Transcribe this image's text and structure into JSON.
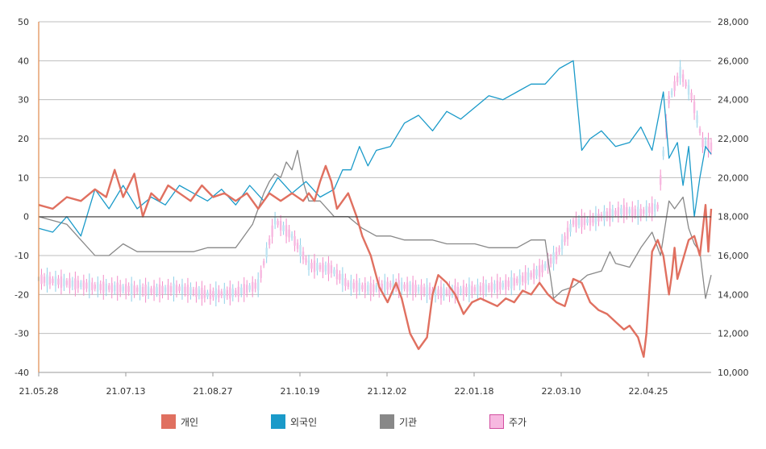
{
  "chart_data": {
    "type": "line",
    "title": "",
    "left_axis": {
      "ylim": [
        -40,
        50
      ],
      "ticks": [
        "50",
        "40",
        "30",
        "20",
        "10",
        "0",
        "-10",
        "-20",
        "-30",
        "-40"
      ]
    },
    "right_axis": {
      "ylim": [
        10000,
        28000
      ],
      "ticks": [
        "28,000",
        "26,000",
        "24,000",
        "22,000",
        "20,000",
        "18,000",
        "16,000",
        "14,000",
        "12,000",
        "10,000"
      ]
    },
    "x_ticks": [
      "21.05.28",
      "21.07.13",
      "21.08.27",
      "21.10.19",
      "21.12.02",
      "22.01.18",
      "22.03.10",
      "22.04.25"
    ],
    "n_points": 240,
    "series": [
      {
        "name": "개인",
        "color": "#e07060",
        "axis": "left",
        "points": [
          [
            0,
            3
          ],
          [
            5,
            2
          ],
          [
            10,
            5
          ],
          [
            15,
            4
          ],
          [
            20,
            7
          ],
          [
            24,
            5
          ],
          [
            27,
            12
          ],
          [
            30,
            5
          ],
          [
            34,
            11
          ],
          [
            37,
            0
          ],
          [
            40,
            6
          ],
          [
            43,
            4
          ],
          [
            46,
            8
          ],
          [
            50,
            6
          ],
          [
            54,
            4
          ],
          [
            58,
            8
          ],
          [
            62,
            5
          ],
          [
            66,
            6
          ],
          [
            70,
            4
          ],
          [
            74,
            6
          ],
          [
            78,
            2
          ],
          [
            82,
            6
          ],
          [
            86,
            4
          ],
          [
            90,
            6
          ],
          [
            94,
            4
          ],
          [
            96,
            6
          ],
          [
            98,
            4
          ],
          [
            100,
            9
          ],
          [
            102,
            13
          ],
          [
            104,
            9
          ],
          [
            106,
            2
          ],
          [
            110,
            6
          ],
          [
            113,
            0
          ],
          [
            115,
            -5
          ],
          [
            118,
            -10
          ],
          [
            121,
            -18
          ],
          [
            124,
            -22
          ],
          [
            127,
            -17
          ],
          [
            129,
            -21
          ],
          [
            132,
            -30
          ],
          [
            135,
            -34
          ],
          [
            138,
            -31
          ],
          [
            140,
            -20
          ],
          [
            142,
            -15
          ],
          [
            145,
            -17
          ],
          [
            148,
            -20
          ],
          [
            151,
            -25
          ],
          [
            154,
            -22
          ],
          [
            157,
            -21
          ],
          [
            160,
            -22
          ],
          [
            163,
            -23
          ],
          [
            166,
            -21
          ],
          [
            169,
            -22
          ],
          [
            172,
            -19
          ],
          [
            175,
            -20
          ],
          [
            178,
            -17
          ],
          [
            181,
            -20
          ],
          [
            184,
            -22
          ],
          [
            187,
            -23
          ],
          [
            190,
            -16
          ],
          [
            193,
            -17
          ],
          [
            196,
            -22
          ],
          [
            199,
            -24
          ],
          [
            202,
            -25
          ],
          [
            205,
            -27
          ],
          [
            208,
            -29
          ],
          [
            210,
            -28
          ],
          [
            213,
            -31
          ],
          [
            215,
            -36
          ],
          [
            216,
            -30
          ],
          [
            218,
            -9
          ],
          [
            220,
            -6
          ],
          [
            222,
            -10
          ],
          [
            224,
            -20
          ],
          [
            225,
            -15
          ],
          [
            226,
            -8
          ],
          [
            227,
            -16
          ],
          [
            229,
            -11
          ],
          [
            231,
            -6
          ],
          [
            233,
            -5
          ],
          [
            235,
            -10
          ],
          [
            237,
            3
          ],
          [
            238,
            -9
          ],
          [
            239,
            2
          ]
        ]
      },
      {
        "name": "외국인",
        "color": "#1a9ac9",
        "axis": "left",
        "points": [
          [
            0,
            -3
          ],
          [
            5,
            -4
          ],
          [
            10,
            0
          ],
          [
            15,
            -5
          ],
          [
            20,
            7
          ],
          [
            25,
            2
          ],
          [
            30,
            8
          ],
          [
            35,
            2
          ],
          [
            40,
            5
          ],
          [
            45,
            3
          ],
          [
            50,
            8
          ],
          [
            55,
            6
          ],
          [
            60,
            4
          ],
          [
            65,
            7
          ],
          [
            70,
            3
          ],
          [
            75,
            8
          ],
          [
            80,
            4
          ],
          [
            85,
            10
          ],
          [
            90,
            6
          ],
          [
            95,
            9
          ],
          [
            100,
            5
          ],
          [
            105,
            7
          ],
          [
            108,
            12
          ],
          [
            111,
            12
          ],
          [
            114,
            18
          ],
          [
            117,
            13
          ],
          [
            120,
            17
          ],
          [
            125,
            18
          ],
          [
            130,
            24
          ],
          [
            135,
            26
          ],
          [
            140,
            22
          ],
          [
            145,
            27
          ],
          [
            150,
            25
          ],
          [
            155,
            28
          ],
          [
            160,
            31
          ],
          [
            165,
            30
          ],
          [
            170,
            32
          ],
          [
            175,
            34
          ],
          [
            180,
            34
          ],
          [
            185,
            38
          ],
          [
            190,
            40
          ],
          [
            193,
            17
          ],
          [
            196,
            20
          ],
          [
            200,
            22
          ],
          [
            205,
            18
          ],
          [
            210,
            19
          ],
          [
            214,
            23
          ],
          [
            218,
            17
          ],
          [
            222,
            32
          ],
          [
            224,
            15
          ],
          [
            227,
            19
          ],
          [
            229,
            8
          ],
          [
            231,
            18
          ],
          [
            233,
            0
          ],
          [
            235,
            10
          ],
          [
            237,
            18
          ],
          [
            239,
            16
          ]
        ]
      },
      {
        "name": "기관",
        "color": "#888888",
        "axis": "left",
        "points": [
          [
            0,
            0
          ],
          [
            5,
            -1
          ],
          [
            10,
            -2
          ],
          [
            15,
            -6
          ],
          [
            20,
            -10
          ],
          [
            25,
            -10
          ],
          [
            30,
            -7
          ],
          [
            35,
            -9
          ],
          [
            40,
            -9
          ],
          [
            45,
            -9
          ],
          [
            50,
            -9
          ],
          [
            55,
            -9
          ],
          [
            60,
            -8
          ],
          [
            65,
            -8
          ],
          [
            70,
            -8
          ],
          [
            72,
            -6
          ],
          [
            76,
            -2
          ],
          [
            78,
            2
          ],
          [
            80,
            6
          ],
          [
            82,
            9
          ],
          [
            84,
            11
          ],
          [
            86,
            10
          ],
          [
            88,
            14
          ],
          [
            90,
            12
          ],
          [
            92,
            17
          ],
          [
            94,
            9
          ],
          [
            96,
            4
          ],
          [
            100,
            4
          ],
          [
            105,
            0
          ],
          [
            110,
            0
          ],
          [
            115,
            -3
          ],
          [
            120,
            -5
          ],
          [
            125,
            -5
          ],
          [
            130,
            -6
          ],
          [
            135,
            -6
          ],
          [
            140,
            -6
          ],
          [
            145,
            -7
          ],
          [
            150,
            -7
          ],
          [
            155,
            -7
          ],
          [
            160,
            -8
          ],
          [
            165,
            -8
          ],
          [
            170,
            -8
          ],
          [
            175,
            -6
          ],
          [
            180,
            -6
          ],
          [
            183,
            -21
          ],
          [
            186,
            -19
          ],
          [
            190,
            -18
          ],
          [
            195,
            -15
          ],
          [
            200,
            -14
          ],
          [
            203,
            -9
          ],
          [
            205,
            -12
          ],
          [
            210,
            -13
          ],
          [
            214,
            -8
          ],
          [
            218,
            -4
          ],
          [
            221,
            -10
          ],
          [
            224,
            4
          ],
          [
            226,
            2
          ],
          [
            229,
            5
          ],
          [
            231,
            -3
          ],
          [
            233,
            -7
          ],
          [
            235,
            -9
          ],
          [
            237,
            -21
          ],
          [
            239,
            -15
          ]
        ]
      },
      {
        "name": "주가",
        "color": "#f7b8e0",
        "axis": "right",
        "candles": [
          [
            0,
            14800
          ],
          [
            10,
            14600
          ],
          [
            20,
            14400
          ],
          [
            30,
            14300
          ],
          [
            40,
            14200
          ],
          [
            50,
            14300
          ],
          [
            60,
            14000
          ],
          [
            70,
            14100
          ],
          [
            78,
            14500
          ],
          [
            84,
            17800
          ],
          [
            90,
            17000
          ],
          [
            96,
            15500
          ],
          [
            104,
            15300
          ],
          [
            110,
            14500
          ],
          [
            118,
            14300
          ],
          [
            126,
            14500
          ],
          [
            134,
            14300
          ],
          [
            142,
            14100
          ],
          [
            150,
            14200
          ],
          [
            158,
            14300
          ],
          [
            166,
            14500
          ],
          [
            172,
            14800
          ],
          [
            178,
            15200
          ],
          [
            184,
            16000
          ],
          [
            190,
            17700
          ],
          [
            196,
            17800
          ],
          [
            202,
            18100
          ],
          [
            208,
            18300
          ],
          [
            214,
            18200
          ],
          [
            220,
            18500
          ],
          [
            224,
            24000
          ],
          [
            228,
            25400
          ],
          [
            232,
            24200
          ],
          [
            236,
            21800
          ],
          [
            239,
            21600
          ]
        ]
      }
    ]
  },
  "legend": [
    {
      "label": "개인",
      "color": "#e07060"
    },
    {
      "label": "외국인",
      "color": "#1a9ac9"
    },
    {
      "label": "기관",
      "color": "#888888"
    },
    {
      "label": "주가",
      "color": "#f7b8e0"
    }
  ]
}
